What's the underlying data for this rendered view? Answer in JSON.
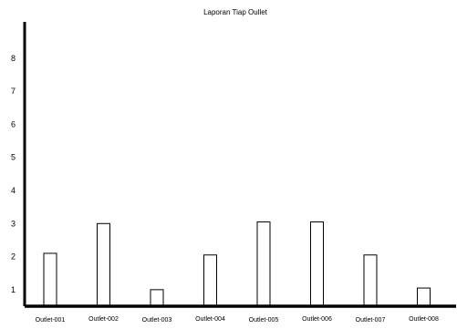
{
  "chart_data": {
    "type": "bar",
    "title": "Laporan Tiap Oullet",
    "categories": [
      "Outlet-001",
      "Outlet-002",
      "Outlet-003",
      "Outlet-004",
      "Outlet-005",
      "Outlet-006",
      "Outlet-007",
      "Outlet-008"
    ],
    "values": [
      2.1,
      3.0,
      1.0,
      2.05,
      3.05,
      3.05,
      2.05,
      1.05
    ],
    "y_ticks": [
      "1",
      "2",
      "3",
      "4",
      "5",
      "6",
      "7",
      "8"
    ],
    "ylim": [
      0.5,
      9.1
    ],
    "grid": false,
    "legend": "none",
    "colors": {
      "bar_fill": "#ffffff",
      "bar_stroke": "#000000",
      "axis": "#000000",
      "background": "#ffffff"
    }
  }
}
